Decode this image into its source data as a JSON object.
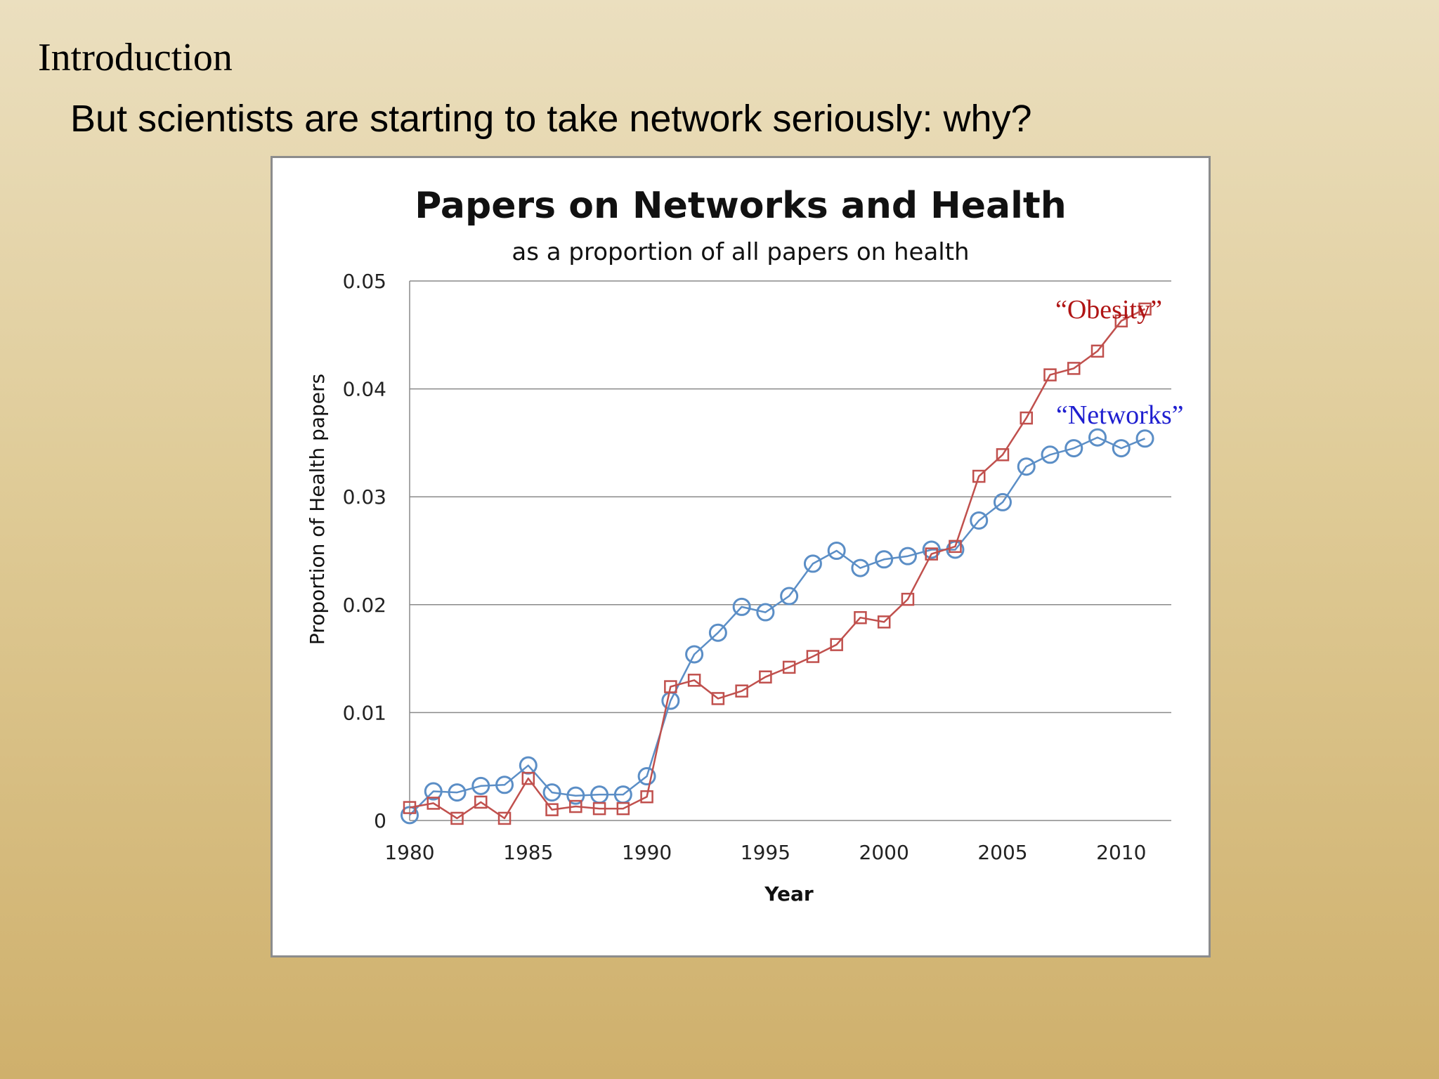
{
  "slide": {
    "heading": "Introduction",
    "subheading": "But scientists are starting to take network seriously: why?"
  },
  "chart_data": {
    "type": "line",
    "title": "Papers on Networks and Health",
    "subtitle": "as a proportion of all papers on health",
    "xlabel": "Year",
    "ylabel": "Proportion of Health papers",
    "xlim": [
      1980,
      2012
    ],
    "ylim": [
      0,
      0.05
    ],
    "x_ticks": [
      1980,
      1985,
      1990,
      1995,
      2000,
      2005,
      2010
    ],
    "y_ticks": [
      0,
      0.01,
      0.02,
      0.03,
      0.04,
      0.05
    ],
    "y_tick_labels": [
      "0",
      "0.01",
      "0.02",
      "0.03",
      "0.04",
      "0.05"
    ],
    "grid": "horizontal",
    "x": [
      1980,
      1981,
      1982,
      1983,
      1984,
      1985,
      1986,
      1987,
      1988,
      1989,
      1990,
      1991,
      1992,
      1993,
      1994,
      1995,
      1996,
      1997,
      1998,
      1999,
      2000,
      2001,
      2002,
      2003,
      2004,
      2005,
      2006,
      2007,
      2008,
      2009,
      2010,
      2011
    ],
    "series": [
      {
        "name": "“Networks”",
        "color": "#5b8ec6",
        "label_color": "#1f1fd0",
        "marker": "circle",
        "values": [
          0.0005,
          0.0027,
          0.0026,
          0.0032,
          0.0033,
          0.0051,
          0.0026,
          0.0023,
          0.0024,
          0.0024,
          0.0041,
          0.0111,
          0.0154,
          0.0174,
          0.0198,
          0.0193,
          0.0208,
          0.0238,
          0.025,
          0.0234,
          0.0242,
          0.0245,
          0.0251,
          0.0251,
          0.0278,
          0.0295,
          0.0328,
          0.0339,
          0.0345,
          0.0355,
          0.0345,
          0.0354
        ]
      },
      {
        "name": "“Obesity”",
        "color": "#c0504d",
        "label_color": "#b01515",
        "marker": "square",
        "values": [
          0.0012,
          0.0016,
          0.0002,
          0.0017,
          0.0002,
          0.0039,
          0.001,
          0.0013,
          0.0011,
          0.0011,
          0.0022,
          0.0124,
          0.013,
          0.0113,
          0.012,
          0.0133,
          0.0142,
          0.0152,
          0.0163,
          0.0188,
          0.0184,
          0.0205,
          0.0247,
          0.0254,
          0.0319,
          0.0339,
          0.0373,
          0.0413,
          0.0419,
          0.0435,
          0.0463,
          0.0474
        ]
      }
    ]
  }
}
